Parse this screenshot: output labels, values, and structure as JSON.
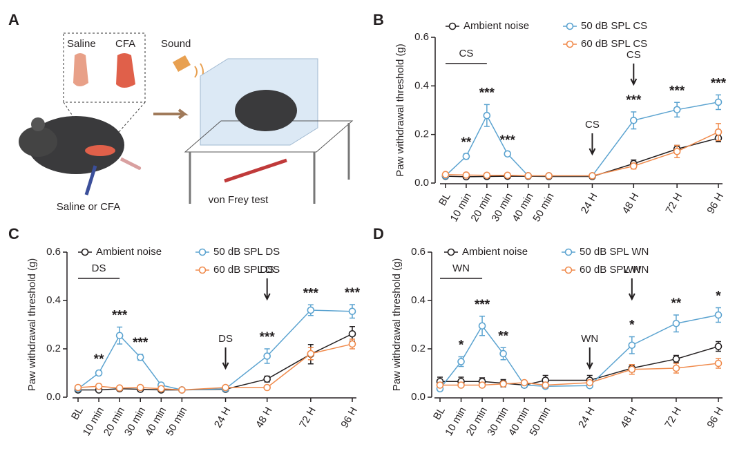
{
  "illustration": {
    "panel_label": "A",
    "saline": "Saline",
    "cfa": "CFA",
    "sound": "Sound",
    "injection": "Saline or CFA",
    "test": "von Frey test"
  },
  "chart_data": [
    {
      "type": "line",
      "panel_label": "B",
      "ylabel": "Paw withdrawal threshold (g)",
      "categories": [
        "BL",
        "10 min",
        "20 min",
        "30 min",
        "40 min",
        "50 min",
        "24 H",
        "48 H",
        "72 H",
        "96 H"
      ],
      "ylim": [
        0,
        0.6
      ],
      "yticks": [
        {
          "value": 0,
          "label": "0.0"
        },
        {
          "value": 0.2,
          "label": "0.2"
        },
        {
          "value": 0.4,
          "label": "0.4"
        },
        {
          "value": 0.6,
          "label": "0.6"
        }
      ],
      "series": [
        {
          "name": "Ambient noise",
          "color": "#231f20",
          "values": [
            0.028,
            0.026,
            0.027,
            0.028,
            0.028,
            0.027,
            0.027,
            0.08,
            0.14,
            0.185
          ],
          "errors": [
            0.005,
            0.005,
            0.005,
            0.005,
            0.004,
            0.004,
            0.005,
            0.015,
            0.015,
            0.015
          ]
        },
        {
          "name": "50 dB SPL CS",
          "color": "#5ba3d0",
          "values": [
            0.03,
            0.11,
            0.278,
            0.12,
            0.03,
            0.03,
            0.03,
            0.258,
            0.302,
            0.333
          ],
          "errors": [
            0.005,
            0.01,
            0.045,
            0.008,
            0.004,
            0.004,
            0.004,
            0.035,
            0.03,
            0.03
          ]
        },
        {
          "name": "60 dB SPL CS",
          "color": "#f08a4b",
          "values": [
            0.035,
            0.033,
            0.032,
            0.032,
            0.03,
            0.03,
            0.03,
            0.07,
            0.13,
            0.21
          ],
          "errors": [
            0.004,
            0.004,
            0.004,
            0.004,
            0.004,
            0.004,
            0.004,
            0.012,
            0.025,
            0.035
          ]
        }
      ],
      "significance": [
        null,
        "**",
        "***",
        "***",
        null,
        null,
        null,
        "***",
        "***",
        "***"
      ],
      "bracket_label": "CS",
      "arrow_labels": [
        "CS",
        "CS"
      ]
    },
    {
      "type": "line",
      "panel_label": "C",
      "ylabel": "Paw withdrawal threshold (g)",
      "categories": [
        "BL",
        "10 min",
        "20 min",
        "30 min",
        "40 min",
        "50 min",
        "24 H",
        "48 H",
        "72 H",
        "96 H"
      ],
      "ylim": [
        0,
        0.6
      ],
      "yticks": [
        {
          "value": 0,
          "label": "0.0"
        },
        {
          "value": 0.2,
          "label": "0.2"
        },
        {
          "value": 0.4,
          "label": "0.4"
        },
        {
          "value": 0.6,
          "label": "0.6"
        }
      ],
      "series": [
        {
          "name": "Ambient noise",
          "color": "#231f20",
          "values": [
            0.03,
            0.03,
            0.035,
            0.033,
            0.03,
            0.03,
            0.033,
            0.075,
            0.178,
            0.262
          ],
          "errors": [
            0.005,
            0.005,
            0.005,
            0.005,
            0.005,
            0.005,
            0.005,
            0.012,
            0.04,
            0.03
          ]
        },
        {
          "name": "50 dB SPL DS",
          "color": "#5ba3d0",
          "values": [
            0.035,
            0.1,
            0.255,
            0.165,
            0.05,
            0.03,
            0.035,
            0.17,
            0.36,
            0.355
          ],
          "errors": [
            0.005,
            0.008,
            0.035,
            0.012,
            0.006,
            0.004,
            0.004,
            0.03,
            0.022,
            0.028
          ]
        },
        {
          "name": "60 dB SPL DS",
          "color": "#f08a4b",
          "values": [
            0.04,
            0.045,
            0.038,
            0.04,
            0.035,
            0.03,
            0.04,
            0.04,
            0.18,
            0.22
          ],
          "errors": [
            0.004,
            0.004,
            0.004,
            0.004,
            0.004,
            0.004,
            0.004,
            0.005,
            0.025,
            0.02
          ]
        }
      ],
      "significance": [
        null,
        "**",
        "***",
        "***",
        null,
        null,
        null,
        "***",
        "***",
        "***"
      ],
      "bracket_label": "DS",
      "arrow_labels": [
        "DS",
        "DS"
      ]
    },
    {
      "type": "line",
      "panel_label": "D",
      "ylabel": "Paw withdrawal threshold (g)",
      "categories": [
        "BL",
        "10 min",
        "20 min",
        "30 min",
        "40 min",
        "50 min",
        "24 H",
        "48 H",
        "72 H",
        "96 H"
      ],
      "ylim": [
        0,
        0.6
      ],
      "yticks": [
        {
          "value": 0,
          "label": "0.0"
        },
        {
          "value": 0.2,
          "label": "0.2"
        },
        {
          "value": 0.4,
          "label": "0.4"
        },
        {
          "value": 0.6,
          "label": "0.6"
        }
      ],
      "series": [
        {
          "name": "Ambient noise",
          "color": "#231f20",
          "values": [
            0.065,
            0.065,
            0.065,
            0.058,
            0.05,
            0.07,
            0.07,
            0.12,
            0.158,
            0.21
          ],
          "errors": [
            0.018,
            0.018,
            0.015,
            0.015,
            0.01,
            0.02,
            0.02,
            0.015,
            0.015,
            0.02
          ]
        },
        {
          "name": "50 dB SPL WN",
          "color": "#5ba3d0",
          "values": [
            0.035,
            0.147,
            0.295,
            0.18,
            0.05,
            0.045,
            0.048,
            0.215,
            0.305,
            0.34
          ],
          "errors": [
            0.005,
            0.02,
            0.04,
            0.025,
            0.008,
            0.005,
            0.005,
            0.035,
            0.035,
            0.03
          ]
        },
        {
          "name": "60 dB SPL WN",
          "color": "#f08a4b",
          "values": [
            0.05,
            0.05,
            0.05,
            0.055,
            0.06,
            0.05,
            0.06,
            0.115,
            0.12,
            0.14
          ],
          "errors": [
            0.005,
            0.005,
            0.005,
            0.005,
            0.005,
            0.005,
            0.005,
            0.02,
            0.02,
            0.02
          ]
        }
      ],
      "significance": [
        null,
        "*",
        "***",
        "**",
        null,
        null,
        null,
        "*",
        "**",
        "*"
      ],
      "bracket_label": "WN",
      "arrow_labels": [
        "WN",
        "WN"
      ]
    }
  ]
}
